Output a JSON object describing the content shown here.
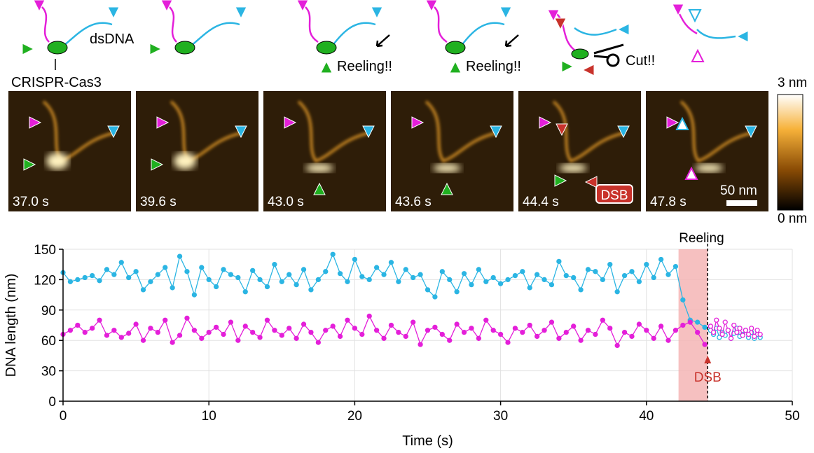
{
  "chart_data": {
    "type": "line",
    "xlabel": "Time (s)",
    "ylabel": "DNA length (nm)",
    "xlim": [
      0,
      50
    ],
    "xticks": [
      0,
      10,
      20,
      30,
      40,
      50
    ],
    "ylim": [
      0,
      150
    ],
    "yticks": [
      0,
      30,
      60,
      90,
      120,
      150
    ],
    "grid": true,
    "x": [
      0,
      0.5,
      1,
      1.5,
      2,
      2.5,
      3,
      3.5,
      4,
      4.5,
      5,
      5.5,
      6,
      6.5,
      7,
      7.5,
      8,
      8.5,
      9,
      9.5,
      10,
      10.5,
      11,
      11.5,
      12,
      12.5,
      13,
      13.5,
      14,
      14.5,
      15,
      15.5,
      16,
      16.5,
      17,
      17.5,
      18,
      18.5,
      19,
      19.5,
      20,
      20.5,
      21,
      21.5,
      22,
      22.5,
      23,
      23.5,
      24,
      24.5,
      25,
      25.5,
      26,
      26.5,
      27,
      27.5,
      28,
      28.5,
      29,
      29.5,
      30,
      30.5,
      31,
      31.5,
      32,
      32.5,
      33,
      33.5,
      34,
      34.5,
      35,
      35.5,
      36,
      36.5,
      37,
      37.5,
      38,
      38.5,
      39,
      39.5,
      40,
      40.5,
      41,
      41.5,
      42,
      42.5,
      43,
      43.5,
      44
    ],
    "series": [
      {
        "color": "#2bb5e3",
        "marker": "filled",
        "values": [
          127,
          118,
          120,
          122,
          124,
          119,
          130,
          125,
          137,
          122,
          128,
          110,
          118,
          125,
          132,
          112,
          143,
          128,
          105,
          132,
          120,
          113,
          130,
          125,
          122,
          108,
          129,
          120,
          113,
          135,
          118,
          125,
          115,
          130,
          110,
          120,
          128,
          145,
          126,
          118,
          140,
          123,
          120,
          132,
          125,
          137,
          118,
          130,
          122,
          125,
          110,
          103,
          128,
          120,
          108,
          126,
          115,
          130,
          118,
          122,
          116,
          120,
          124,
          128,
          112,
          125,
          120,
          115,
          138,
          124,
          122,
          110,
          130,
          128,
          120,
          135,
          108,
          124,
          128,
          118,
          135,
          122,
          140,
          125,
          133,
          100,
          80,
          78,
          73
        ]
      },
      {
        "color": "#e41fd9",
        "marker": "filled",
        "values": [
          66,
          70,
          75,
          68,
          72,
          80,
          65,
          70,
          63,
          67,
          76,
          60,
          72,
          68,
          80,
          58,
          65,
          82,
          70,
          62,
          68,
          73,
          66,
          78,
          60,
          74,
          68,
          63,
          80,
          70,
          65,
          72,
          62,
          76,
          68,
          58,
          70,
          74,
          64,
          80,
          72,
          66,
          84,
          70,
          62,
          75,
          68,
          64,
          78,
          56,
          70,
          73,
          66,
          60,
          76,
          68,
          72,
          62,
          80,
          70,
          66,
          58,
          72,
          68,
          75,
          64,
          70,
          78,
          62,
          68,
          74,
          60,
          70,
          66,
          80,
          72,
          55,
          68,
          64,
          76,
          70,
          62,
          74,
          60,
          70,
          75,
          78,
          68,
          56
        ]
      },
      {
        "color": "#2bb5e3",
        "marker": "open",
        "x": [
          44.4,
          44.6,
          44.8,
          45,
          45.2,
          45.4,
          45.6,
          45.8,
          46,
          46.2,
          46.4,
          46.6,
          46.8,
          47,
          47.2,
          47.4,
          47.6,
          47.8
        ],
        "values": [
          70,
          66,
          72,
          63,
          68,
          65,
          70,
          62,
          67,
          72,
          64,
          66,
          70,
          63,
          68,
          62,
          66,
          63
        ]
      },
      {
        "color": "#e41fd9",
        "marker": "open",
        "x": [
          44.4,
          44.6,
          44.8,
          45,
          45.2,
          45.4,
          45.6,
          45.8,
          46,
          46.2,
          46.4,
          46.6,
          46.8,
          47,
          47.2,
          47.4,
          47.6,
          47.8
        ],
        "values": [
          74,
          68,
          80,
          72,
          66,
          78,
          70,
          62,
          75,
          68,
          72,
          65,
          70,
          66,
          72,
          64,
          70,
          66
        ]
      }
    ],
    "shade": {
      "x": [
        42.2,
        44.2
      ],
      "label": "Reeling",
      "color": "#f4b5b5"
    },
    "marker_line": {
      "x": 44.2,
      "label": "DSB",
      "color": "#c8322b"
    }
  },
  "figure": {
    "diagram_labels": [
      "dsDNA",
      "CRISPR-Cas3",
      "Reeling!!",
      "Reeling!!",
      "Cut!!"
    ],
    "panels": [
      "37.0 s",
      "39.6 s",
      "43.0 s",
      "43.6 s",
      "44.4 s",
      "47.8 s"
    ],
    "dsb_label": "DSB",
    "scale_bar": "50 nm",
    "colorbar": {
      "max": "3 nm",
      "min": "0 nm"
    }
  }
}
